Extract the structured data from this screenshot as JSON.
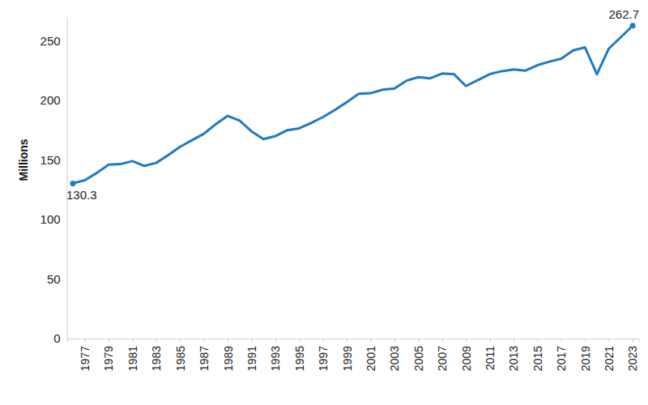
{
  "chart_data": {
    "type": "line",
    "y_label": "Millions",
    "color": "#1f7bc1",
    "grid": false,
    "x": [
      1976,
      1977,
      1978,
      1979,
      1980,
      1981,
      1982,
      1983,
      1984,
      1985,
      1986,
      1987,
      1988,
      1989,
      1990,
      1991,
      1992,
      1993,
      1994,
      1995,
      1996,
      1997,
      1998,
      1999,
      2000,
      2001,
      2002,
      2003,
      2004,
      2005,
      2006,
      2007,
      2008,
      2009,
      2010,
      2011,
      2012,
      2013,
      2014,
      2015,
      2016,
      2017,
      2018,
      2019,
      2020,
      2021,
      2022,
      2023
    ],
    "values": [
      130.3,
      133,
      139,
      146,
      146.5,
      149,
      145,
      147.5,
      154,
      161,
      166.5,
      172,
      180,
      187,
      183,
      174,
      167.5,
      170,
      175,
      176.5,
      181,
      186,
      192,
      198.5,
      205.5,
      206,
      209,
      210,
      216.5,
      219.5,
      218.5,
      222.5,
      222,
      212,
      217,
      222,
      224.5,
      226,
      225,
      229.5,
      232.5,
      235,
      242,
      244.5,
      222,
      243.5,
      253,
      262.7
    ],
    "xlim": [
      1975.5,
      2023.5
    ],
    "xticks": [
      1977,
      1979,
      1981,
      1983,
      1985,
      1987,
      1989,
      1991,
      1993,
      1995,
      1997,
      1999,
      2001,
      2003,
      2005,
      2007,
      2009,
      2011,
      2013,
      2015,
      2017,
      2019,
      2021,
      2023
    ],
    "ylim": [
      0,
      270
    ],
    "yticks": [
      0,
      50,
      100,
      150,
      200,
      250
    ],
    "annotations": [
      {
        "text": "130.3",
        "x": 1976,
        "y": 130.3
      },
      {
        "text": "262.7",
        "x": 2023,
        "y": 262.7
      }
    ]
  }
}
